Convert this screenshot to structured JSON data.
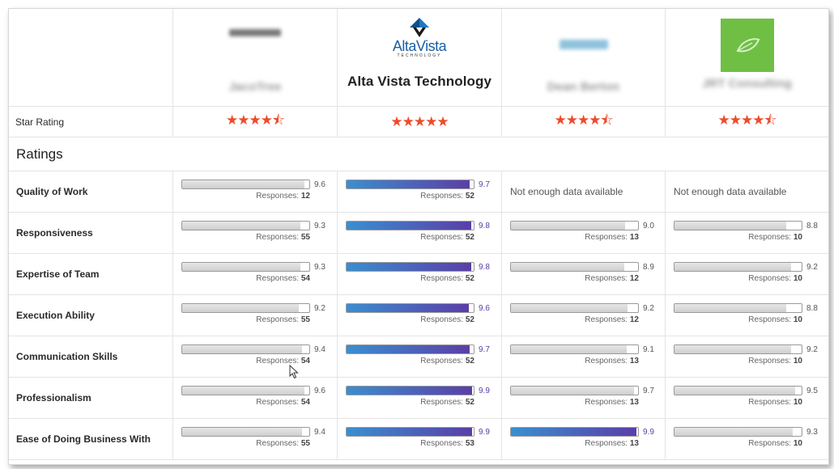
{
  "vendors": [
    {
      "name": "JacoTree",
      "logo": "blurred-logo",
      "highlight": false,
      "stars": "★★★★⯪"
    },
    {
      "name": "Alta Vista Technology",
      "logo_text": "AltaVista",
      "logo_sub": "TECHNOLOGY",
      "highlight": true,
      "stars": "★★★★★"
    },
    {
      "name": "Dean Berton",
      "logo": "blurred-logo",
      "highlight": false,
      "stars": "★★★★⯪"
    },
    {
      "name": "JRT Consulting",
      "logo": "green-leaf-logo",
      "highlight": false,
      "stars": "★★★★⯪"
    }
  ],
  "labels": {
    "star_rating": "Star Rating",
    "ratings": "Ratings",
    "responses": "Responses:",
    "nodata": "Not enough data available"
  },
  "metrics": [
    {
      "name": "Quality of Work",
      "values": [
        {
          "score": "9.6",
          "responses": "12",
          "fill": 0.96
        },
        {
          "score": "9.7",
          "responses": "52",
          "fill": 0.97
        },
        null,
        null
      ]
    },
    {
      "name": "Responsiveness",
      "values": [
        {
          "score": "9.3",
          "responses": "55",
          "fill": 0.93
        },
        {
          "score": "9.8",
          "responses": "52",
          "fill": 0.98
        },
        {
          "score": "9.0",
          "responses": "13",
          "fill": 0.9
        },
        {
          "score": "8.8",
          "responses": "10",
          "fill": 0.88
        }
      ]
    },
    {
      "name": "Expertise of Team",
      "values": [
        {
          "score": "9.3",
          "responses": "54",
          "fill": 0.93
        },
        {
          "score": "9.8",
          "responses": "52",
          "fill": 0.98
        },
        {
          "score": "8.9",
          "responses": "12",
          "fill": 0.89
        },
        {
          "score": "9.2",
          "responses": "10",
          "fill": 0.92
        }
      ]
    },
    {
      "name": "Execution Ability",
      "values": [
        {
          "score": "9.2",
          "responses": "55",
          "fill": 0.92
        },
        {
          "score": "9.6",
          "responses": "52",
          "fill": 0.96
        },
        {
          "score": "9.2",
          "responses": "12",
          "fill": 0.92
        },
        {
          "score": "8.8",
          "responses": "10",
          "fill": 0.88
        }
      ]
    },
    {
      "name": "Communication Skills",
      "values": [
        {
          "score": "9.4",
          "responses": "54",
          "fill": 0.94
        },
        {
          "score": "9.7",
          "responses": "52",
          "fill": 0.97
        },
        {
          "score": "9.1",
          "responses": "13",
          "fill": 0.91
        },
        {
          "score": "9.2",
          "responses": "10",
          "fill": 0.92
        }
      ]
    },
    {
      "name": "Professionalism",
      "values": [
        {
          "score": "9.6",
          "responses": "54",
          "fill": 0.96
        },
        {
          "score": "9.9",
          "responses": "52",
          "fill": 0.99
        },
        {
          "score": "9.7",
          "responses": "13",
          "fill": 0.97
        },
        {
          "score": "9.5",
          "responses": "10",
          "fill": 0.95
        }
      ]
    },
    {
      "name": "Ease of Doing Business With",
      "values": [
        {
          "score": "9.4",
          "responses": "55",
          "fill": 0.94
        },
        {
          "score": "9.9",
          "responses": "53",
          "fill": 0.99
        },
        {
          "score": "9.9",
          "responses": "13",
          "fill": 0.99,
          "highlight": true
        },
        {
          "score": "9.3",
          "responses": "10",
          "fill": 0.93
        }
      ]
    }
  ]
}
